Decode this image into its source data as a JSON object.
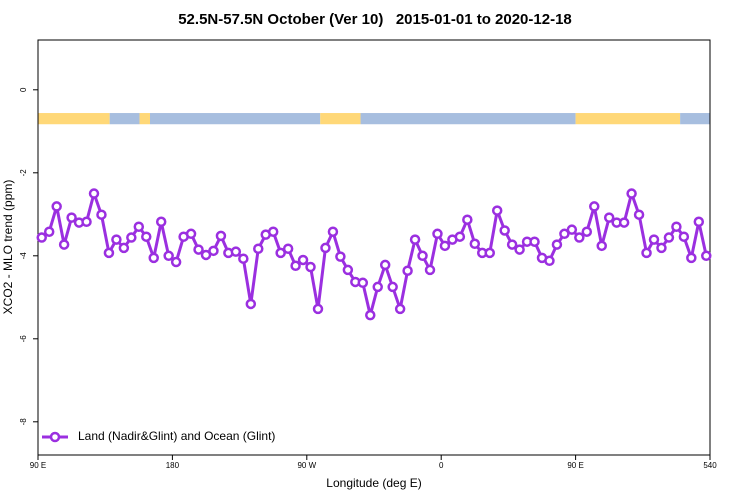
{
  "chart_data": {
    "type": "line",
    "title": "52.5N-57.5N October (Ver 10)   2015-01-01 to 2020-12-18",
    "xlabel": "Longitude (deg E)",
    "ylabel": "XCO2 - MLO trend (ppm)",
    "xlim": [
      90,
      540
    ],
    "ylim": [
      -8.8,
      1.2
    ],
    "xticks": [
      {
        "value": 90,
        "label": "90 E"
      },
      180,
      {
        "value": 270,
        "label": "90 W"
      },
      {
        "value": 360,
        "label": "0"
      },
      {
        "value": 450,
        "label": "90 E"
      },
      540
    ],
    "yticks": [
      0,
      -2,
      -4,
      -6,
      -8
    ],
    "grid": false,
    "legend": "lower left",
    "band_ylim": [
      -0.83,
      -0.56
    ],
    "band": [
      {
        "start": 90,
        "end": 138,
        "color": "#ffd878"
      },
      {
        "start": 138,
        "end": 158,
        "color": "#a7bedf"
      },
      {
        "start": 158,
        "end": 165,
        "color": "#ffd878"
      },
      {
        "start": 165,
        "end": 279,
        "color": "#a7bedf"
      },
      {
        "start": 279,
        "end": 306,
        "color": "#ffd878"
      },
      {
        "start": 306,
        "end": 450,
        "color": "#a7bedf"
      },
      {
        "start": 450,
        "end": 520,
        "color": "#ffd878"
      },
      {
        "start": 520,
        "end": 540,
        "color": "#a7bedf"
      }
    ],
    "x": [
      92.5,
      97.5,
      102.5,
      107.5,
      112.5,
      117.5,
      122.5,
      127.5,
      132.5,
      137.5,
      142.5,
      147.5,
      152.5,
      157.5,
      162.5,
      167.5,
      172.5,
      177.5,
      182.5,
      187.5,
      192.5,
      197.5,
      202.5,
      207.5,
      212.5,
      217.5,
      222.5,
      227.5,
      232.5,
      237.5,
      242.5,
      247.5,
      252.5,
      257.5,
      262.5,
      267.5,
      272.5,
      277.5,
      282.5,
      287.5,
      292.5,
      297.5,
      302.5,
      307.5,
      312.5,
      317.5,
      322.5,
      327.5,
      332.5,
      337.5,
      342.5,
      347.5,
      352.5,
      357.5,
      362.5,
      367.5,
      372.5,
      377.5,
      382.5,
      387.5,
      392.5,
      397.5,
      402.5,
      407.5,
      412.5,
      417.5,
      422.5,
      427.5,
      432.5,
      437.5,
      442.5,
      447.5,
      452.5,
      457.5,
      462.5,
      467.5,
      472.5,
      477.5,
      482.5,
      487.5,
      492.5,
      497.5,
      502.5,
      507.5,
      512.5,
      517.5,
      522.5,
      527.5,
      532.5,
      537.5
    ],
    "series": [
      {
        "name": "Land (Nadir&Glint) and Ocean (Glint)",
        "color": "#9b2fe0",
        "values": [
          -3.56,
          -3.42,
          -2.81,
          -3.73,
          -3.08,
          -3.2,
          -3.18,
          -2.5,
          -3.01,
          -3.93,
          -3.61,
          -3.81,
          -3.56,
          -3.3,
          -3.54,
          -4.05,
          -3.18,
          -4.0,
          -4.15,
          -3.54,
          -3.47,
          -3.85,
          -3.98,
          -3.88,
          -3.52,
          -3.93,
          -3.9,
          -4.07,
          -5.16,
          -3.83,
          -3.49,
          -3.42,
          -3.93,
          -3.83,
          -4.24,
          -4.1,
          -4.27,
          -5.28,
          -3.81,
          -3.42,
          -4.02,
          -4.34,
          -4.63,
          -4.65,
          -5.43,
          -4.75,
          -4.22,
          -4.75,
          -5.28,
          -4.36,
          -3.61,
          -4.0,
          -4.34,
          -3.47,
          -3.76,
          -3.61,
          -3.54,
          -3.13,
          -3.71,
          -3.93,
          -3.93,
          -2.91,
          -3.39,
          -3.73,
          -3.85,
          -3.66,
          -3.66,
          -4.05,
          -4.12,
          -3.73,
          -3.47,
          -3.37,
          -3.56,
          -3.42,
          -2.81,
          -3.76,
          -3.08,
          -3.2,
          -3.2,
          -2.5,
          -3.01,
          -3.93,
          -3.61,
          -3.81,
          -3.56,
          -3.3,
          -3.54,
          -4.05,
          -3.18,
          -4.0
        ]
      }
    ]
  }
}
